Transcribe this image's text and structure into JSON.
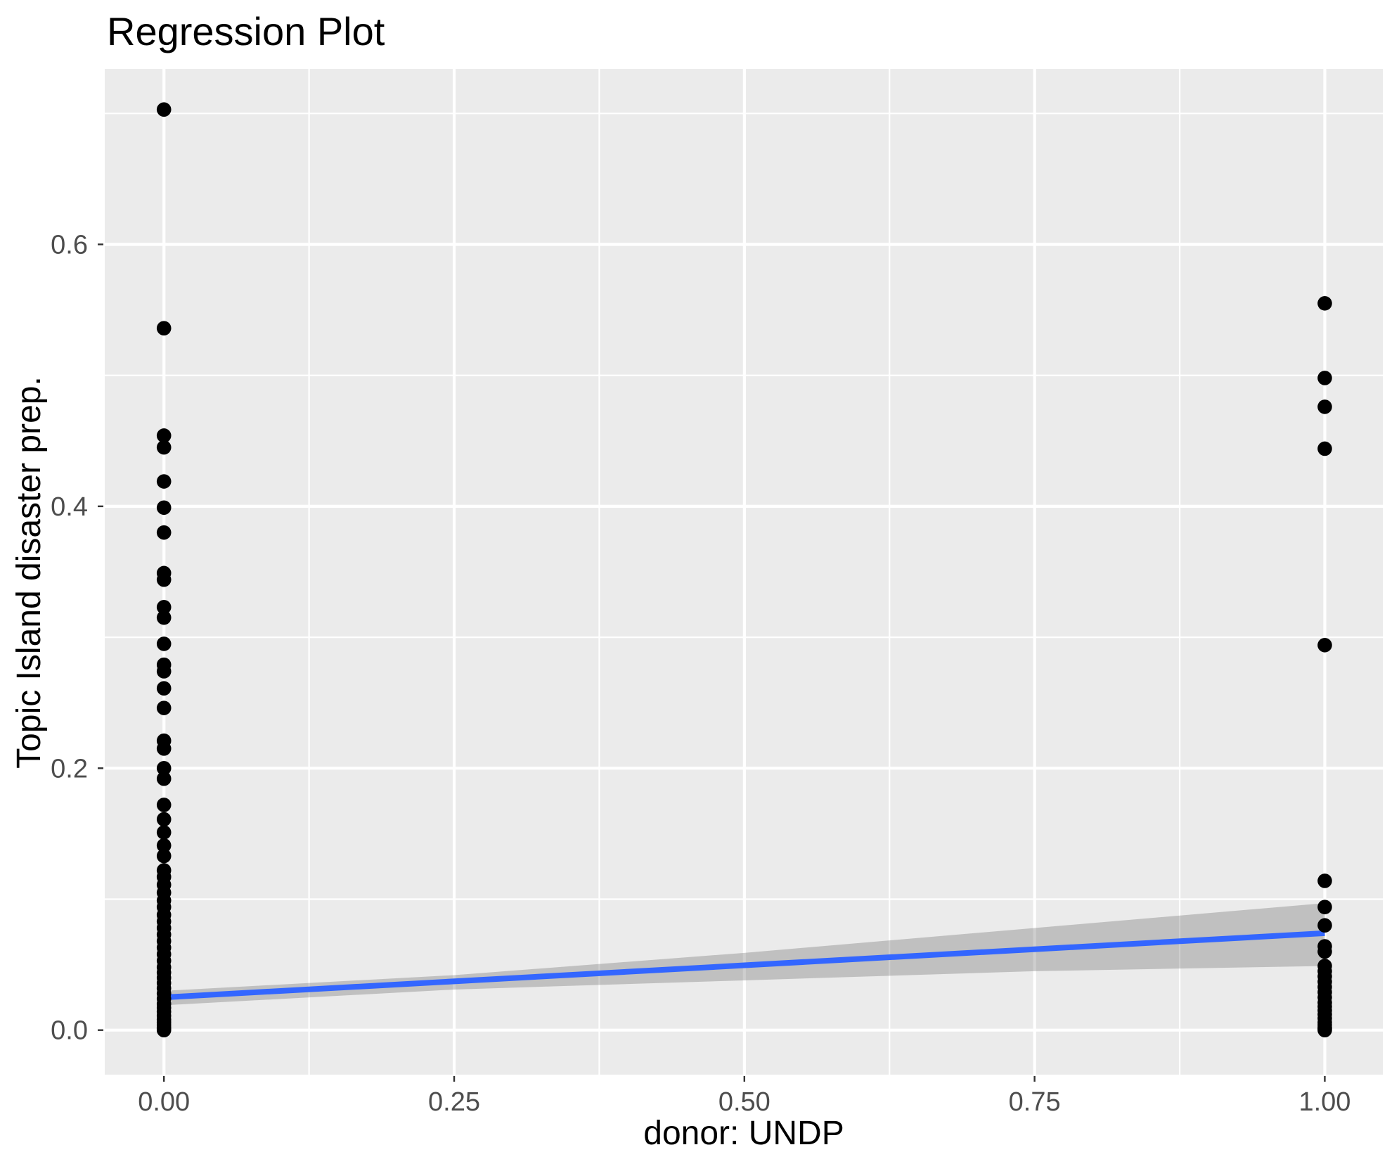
{
  "chart_data": {
    "type": "scatter",
    "title": "Regression Plot",
    "xlabel": "donor: UNDP",
    "ylabel": "Topic Island disaster prep.",
    "legend": "none",
    "grid": "white major and minor gridlines on gray panel",
    "xlim": [
      -0.051,
      1.05
    ],
    "ylim": [
      -0.034,
      0.734
    ],
    "x_ticks": [
      {
        "value": 0.0,
        "label": "0.00"
      },
      {
        "value": 0.25,
        "label": "0.25"
      },
      {
        "value": 0.5,
        "label": "0.50"
      },
      {
        "value": 0.75,
        "label": "0.75"
      },
      {
        "value": 1.0,
        "label": "1.00"
      }
    ],
    "y_ticks": [
      {
        "value": 0.0,
        "label": "0.0"
      },
      {
        "value": 0.2,
        "label": "0.2"
      },
      {
        "value": 0.4,
        "label": "0.4"
      },
      {
        "value": 0.6,
        "label": "0.6"
      }
    ],
    "x_minor": [
      0.125,
      0.375,
      0.625,
      0.875
    ],
    "y_minor": [
      0.1,
      0.3,
      0.5,
      0.7
    ],
    "series": [
      {
        "name": "donor: UNDP = 0",
        "x": 0,
        "y": [
          0.703,
          0.536,
          0.454,
          0.445,
          0.419,
          0.399,
          0.38,
          0.349,
          0.344,
          0.323,
          0.315,
          0.295,
          0.279,
          0.274,
          0.261,
          0.246,
          0.221,
          0.215,
          0.2,
          0.192,
          0.172,
          0.161,
          0.151,
          0.141,
          0.133,
          0.122,
          0.117,
          0.111,
          0.105,
          0.099,
          0.094,
          0.088,
          0.083,
          0.078,
          0.073,
          0.068,
          0.063,
          0.058,
          0.053,
          0.048,
          0.044,
          0.04,
          0.036,
          0.032,
          0.028,
          0.024,
          0.02,
          0.017,
          0.014,
          0.011,
          0.008,
          0.006,
          0.004,
          0.002,
          0.001,
          0.0
        ]
      },
      {
        "name": "donor: UNDP = 1",
        "x": 1,
        "y": [
          0.555,
          0.498,
          0.476,
          0.444,
          0.294,
          0.114,
          0.094,
          0.08,
          0.064,
          0.06,
          0.049,
          0.045,
          0.041,
          0.037,
          0.033,
          0.029,
          0.025,
          0.021,
          0.018,
          0.015,
          0.012,
          0.009,
          0.006,
          0.004,
          0.002,
          0.001,
          0.0
        ]
      }
    ],
    "regression": {
      "x": [
        0,
        1
      ],
      "y": [
        0.025,
        0.074
      ]
    },
    "confidence_band": {
      "x": [
        0.0,
        0.25,
        0.5,
        0.75,
        1.0
      ],
      "upper": [
        0.03,
        0.042,
        0.059,
        0.078,
        0.097
      ],
      "lower": [
        0.019,
        0.031,
        0.038,
        0.045,
        0.049
      ]
    },
    "colors": {
      "panel": "#EBEBEB",
      "grid": "#FFFFFF",
      "points": "#000000",
      "regression_line": "#3366FF",
      "band": "rgba(102,102,102,0.32)",
      "axis_text": "#4D4D4D",
      "tick_mark": "#333333",
      "title_text": "#000000"
    }
  }
}
